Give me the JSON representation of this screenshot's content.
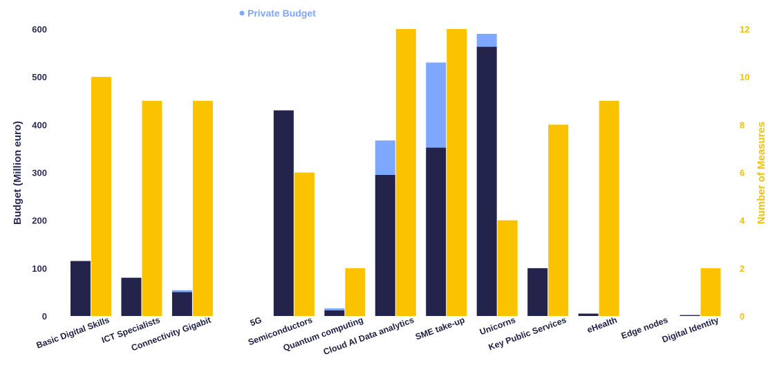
{
  "chart_data": {
    "type": "bar",
    "categories": [
      "Basic Digital Skills",
      "ICT Specialists",
      "Connectivity Gigabit",
      "5G",
      "Semiconductors",
      "Quantum computing",
      "Cloud AI Data analytics",
      "SME take-up",
      "Unicorns",
      "Key Public Services",
      "eHealth",
      "Edge nodes",
      "Digital Identity"
    ],
    "series": [
      {
        "axis": "left",
        "stack": "budget",
        "values": [
          115,
          80,
          50,
          0,
          430,
          12,
          295,
          352,
          563,
          100,
          5,
          0,
          2
        ]
      },
      {
        "name": "Private Budget",
        "axis": "left",
        "stack": "budget",
        "values": [
          0,
          0,
          4,
          0,
          0,
          4,
          72,
          178,
          27,
          0,
          0,
          0,
          0
        ]
      },
      {
        "axis": "right",
        "values": [
          10,
          9,
          9,
          0,
          6,
          2,
          12,
          12,
          4,
          8,
          9,
          0,
          2
        ]
      }
    ],
    "ylabel": "Budget (Million euro)",
    "y2label": "Number of Measures",
    "ylim": [
      0,
      600
    ],
    "y2lim": [
      0,
      12
    ],
    "yticks": [
      0,
      100,
      200,
      300,
      400,
      500,
      600
    ],
    "y2ticks": [
      0,
      2,
      4,
      6,
      8,
      10,
      12
    ],
    "legend": [
      {
        "label": "Private Budget",
        "position": "top"
      }
    ],
    "colors": {
      "public": "#23234b",
      "private": "#7ea7ff",
      "measures": "#fbc200",
      "left_axis_text": "#2a2b57",
      "right_axis_text": "#f2c200"
    },
    "grid": false
  }
}
